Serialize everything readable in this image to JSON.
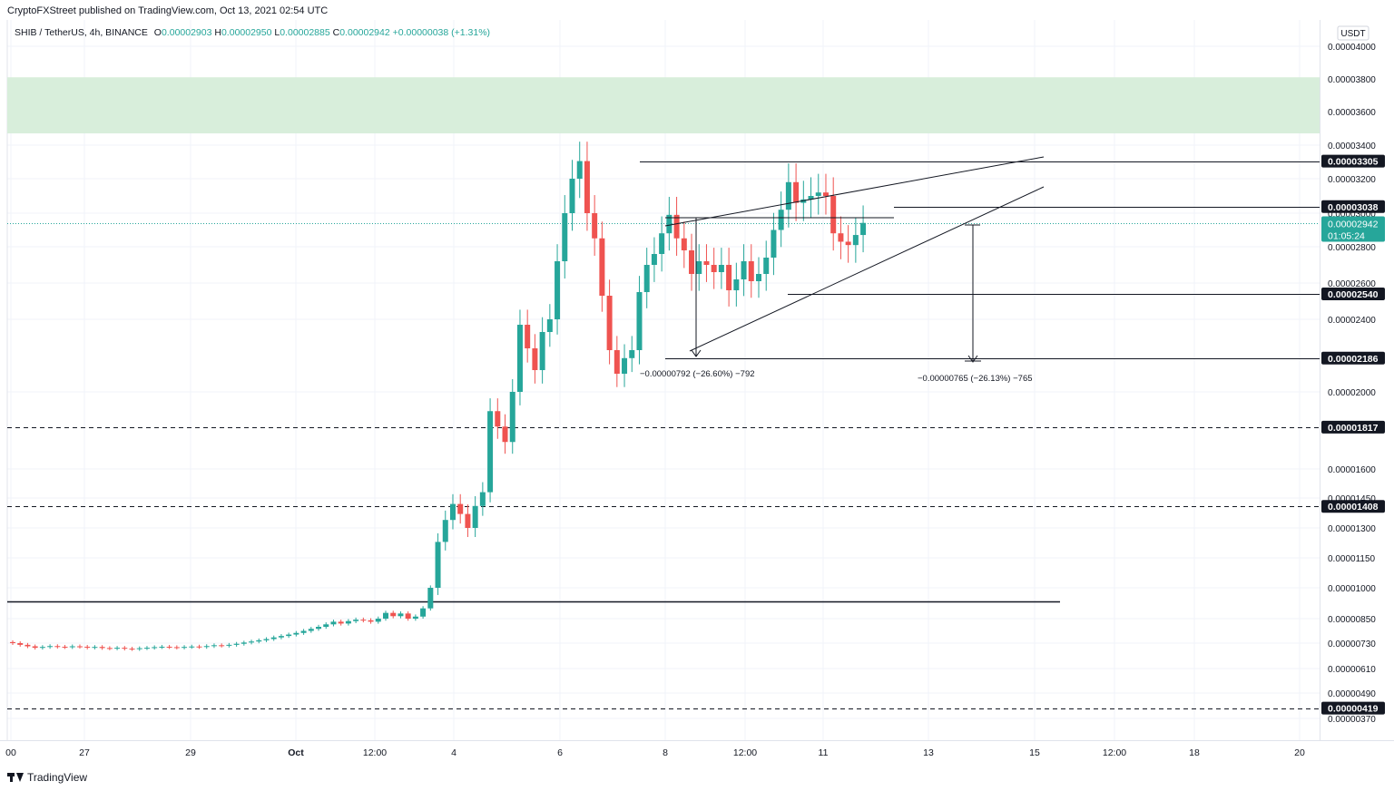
{
  "header": {
    "published_text": "CryptoFXStreet published on TradingView.com, Oct 13, 2021 02:54 UTC"
  },
  "legend": {
    "symbol": "SHIB / TetherUS, 4h, BINANCE",
    "o_label": "O",
    "o_value": "0.00002903",
    "h_label": "H",
    "h_value": "0.00002950",
    "l_label": "L",
    "l_value": "0.00002885",
    "c_label": "C",
    "c_value": "0.00002942",
    "change": "+0.00000038 (+1.31%)"
  },
  "footer": {
    "brand": "TradingView"
  },
  "colors": {
    "up": "#26a69a",
    "down": "#ef5350",
    "zone": "#d8eedb",
    "price_line": "#26a69a"
  },
  "chart_data": {
    "type": "candlestick",
    "currency": "USDT",
    "current_price_label": "0.00002942",
    "countdown": "01:05:24",
    "y_ticks": [
      "0.00004000",
      "0.00003800",
      "0.00003600",
      "0.00003400",
      "0.00003200",
      "0.00003000",
      "0.00002800",
      "0.00002600",
      "0.00002400",
      "0.00002000",
      "0.00001600",
      "0.00001450",
      "0.00001300",
      "0.00001150",
      "0.00001000",
      "0.00000850",
      "0.00000730",
      "0.00000610",
      "0.00000490",
      "0.00000370"
    ],
    "level_labels": [
      {
        "text": "0.00003305",
        "style": "solid"
      },
      {
        "text": "0.00003038",
        "style": "solid"
      },
      {
        "text": "0.00002540",
        "style": "solid"
      },
      {
        "text": "0.00002186",
        "style": "solid"
      },
      {
        "text": "0.00001817",
        "style": "dashed"
      },
      {
        "text": "0.00001408",
        "style": "dashed"
      },
      {
        "text": "0.00000419",
        "style": "dashed"
      }
    ],
    "x_ticks": [
      "00",
      "27",
      "29",
      "Oct",
      "12:00",
      "4",
      "6",
      "8",
      "12:00",
      "11",
      "13",
      "15",
      "12:00",
      "18",
      "20"
    ],
    "measurements": [
      {
        "text": "−0.00000792 (−26.60%) −792"
      },
      {
        "text": "−0.00000765 (−26.13%) −765"
      }
    ],
    "supply_zone": [
      "0.00003470",
      "0.00003810"
    ],
    "pattern": "rising wedge",
    "candles_summary": "4h SHIB/USDT from ~Sep 26 to Oct 13, 2021: flat near 0.0000072, rally from Oct 4 to high ~0.0000352 on Oct 7, pullback to ~0.0000220, rising wedge consolidation up to ~0.0000294"
  }
}
